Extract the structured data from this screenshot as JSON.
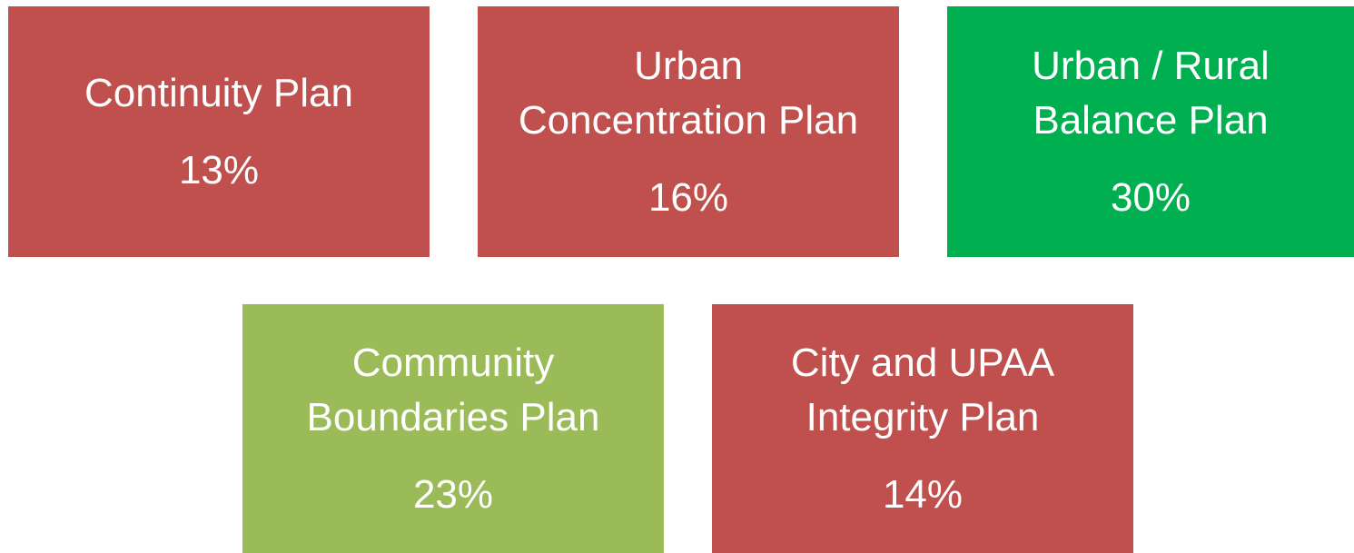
{
  "nodes": [
    {
      "label": [
        "Continuity Plan"
      ],
      "value": "13%",
      "color": "#c0504d"
    },
    {
      "label": [
        "Urban",
        "Concentration Plan"
      ],
      "value": "16%",
      "color": "#c0504d"
    },
    {
      "label": [
        "Urban / Rural",
        "Balance Plan"
      ],
      "value": "30%",
      "color": "#00b050"
    },
    {
      "label": [
        "Community",
        "Boundaries Plan"
      ],
      "value": "23%",
      "color": "#9bbb59"
    },
    {
      "label": [
        "City and UPAA",
        "Integrity Plan"
      ],
      "value": "14%",
      "color": "#c0504d"
    }
  ]
}
